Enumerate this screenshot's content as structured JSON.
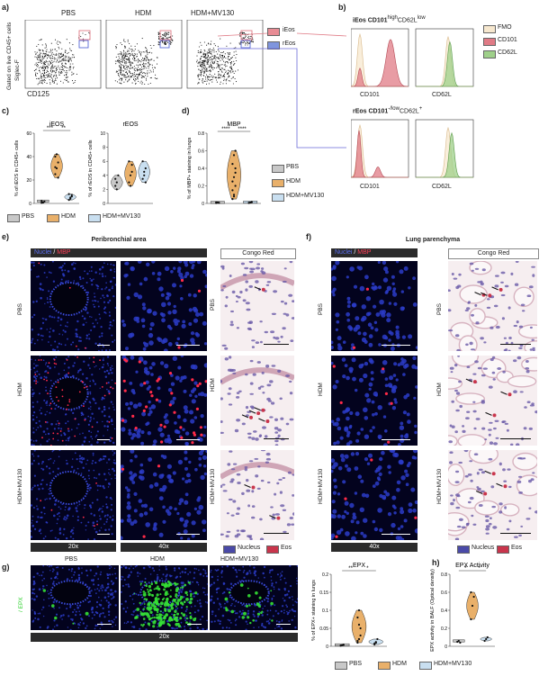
{
  "panels": {
    "a": "a)",
    "b": "b)",
    "c": "c)",
    "d": "d)",
    "e": "e)",
    "f": "f)",
    "g": "g)",
    "h": "h)"
  },
  "a": {
    "conditions": [
      "PBS",
      "HDM",
      "HDM+MV130"
    ],
    "y_axis_gate": "Gated on live CD45+ cells",
    "y_axis": "Siglec-F",
    "x_axis": "CD125",
    "gate_ieos": "iEos",
    "gate_reos": "rEos"
  },
  "b": {
    "ieos_title": "iEos CD101",
    "ieos_sup1": "high",
    "ieos_mid": "CD62L",
    "ieos_sup2": "low",
    "reos_title": "rEos CD101",
    "reos_sup1": "-/low",
    "reos_mid": "CD62L",
    "reos_sup2": "+",
    "x_cd101": "CD101",
    "x_cd62l": "CD62L",
    "legend": [
      {
        "label": "FMO",
        "color": "#f7e8cf"
      },
      {
        "label": "CD101",
        "color": "#e07b86"
      },
      {
        "label": "CD62L",
        "color": "#9fd08a"
      }
    ]
  },
  "colors": {
    "pbs": "#c8c8c8",
    "hdm": "#e9b06a",
    "mv130": "#c9dff0",
    "red": "#d9364c",
    "green": "#2fd12f"
  },
  "c": {
    "ieos_title": "iEOS",
    "reos_title": "rEOS",
    "ieos_ylabel": "% of iEOS in CD45+ cells",
    "reos_ylabel": "% of rEOS in CD45+ cells",
    "sig1": "***",
    "sig2": "**"
  },
  "d": {
    "title": "MBP",
    "ylabel": "% of MBP+ staining in lungs",
    "sig1": "****",
    "sig2": "****"
  },
  "legend_groups": [
    "PBS",
    "HDM",
    "HDM+MV130"
  ],
  "e": {
    "title": "Peribronchial area",
    "stain_label1": "Nuclei",
    "stain_sep": " / ",
    "stain_label2": "MBP",
    "congo_label": "Congo Red",
    "rows": [
      "PBS",
      "HDM",
      "HDM+MV130"
    ],
    "mag1": "20x",
    "mag2": "40x",
    "legend_nucleus": "Nucleus",
    "legend_eos": "Eos"
  },
  "f": {
    "title": "Lung parenchyma",
    "stain_label1": "Nuclei",
    "stain_sep": " / ",
    "stain_label2": "MBP",
    "congo_label": "Congo Red",
    "rows": [
      "PBS",
      "HDM",
      "HDM+MV130"
    ],
    "mag": "40x",
    "legend_nucleus": "Nucleus",
    "legend_eos": "Eos"
  },
  "g": {
    "cols": [
      "PBS",
      "HDM",
      "HDM+MV130"
    ],
    "side_label": "/ EPX",
    "mag": "20x",
    "chart_title": "EPX",
    "ylabel": "% of EPX+ staining in lungs",
    "sig1": "**",
    "sig2": "*"
  },
  "h": {
    "title": "EPX Activity",
    "ylabel": "EPX activity in BALF (Optical density)",
    "sig1": "*",
    "sig2": "*"
  },
  "chart_data": [
    {
      "type": "violin",
      "id": "c-ieos",
      "title": "iEOS",
      "ylabel": "% of iEOS in CD45+ cells",
      "ylim": [
        0,
        60
      ],
      "yticks": [
        0,
        20,
        40,
        60
      ],
      "series": [
        {
          "name": "PBS",
          "values": [
            0.5,
            1,
            1.5,
            2,
            0.8
          ]
        },
        {
          "name": "HDM",
          "values": [
            25,
            30,
            35,
            40,
            42,
            22,
            31
          ]
        },
        {
          "name": "HDM+MV130",
          "values": [
            3,
            5,
            6,
            8,
            4,
            7
          ]
        }
      ]
    },
    {
      "type": "violin",
      "id": "c-reos",
      "title": "rEOS",
      "ylabel": "% of rEOS in CD45+ cells",
      "ylim": [
        0,
        10
      ],
      "yticks": [
        0,
        2,
        4,
        6,
        8,
        10
      ],
      "series": [
        {
          "name": "PBS",
          "values": [
            2.5,
            3,
            4,
            3.5,
            2
          ]
        },
        {
          "name": "HDM",
          "values": [
            3,
            4,
            5.5,
            6,
            2.5,
            4.5
          ]
        },
        {
          "name": "HDM+MV130",
          "values": [
            3.5,
            4,
            5,
            6,
            4.5,
            3
          ]
        }
      ]
    },
    {
      "type": "violin",
      "id": "d-mbp",
      "title": "MBP",
      "ylabel": "% of MBP+ staining in lungs",
      "ylim": [
        0,
        0.8
      ],
      "yticks": [
        0,
        0.2,
        0.4,
        0.6,
        0.8
      ],
      "series": [
        {
          "name": "PBS",
          "values": [
            0.005,
            0.01,
            0.008,
            0.012
          ]
        },
        {
          "name": "HDM",
          "values": [
            0.05,
            0.1,
            0.2,
            0.25,
            0.3,
            0.35,
            0.45,
            0.55,
            0.6,
            0.15,
            0.08,
            0.4
          ]
        },
        {
          "name": "HDM+MV130",
          "values": [
            0.005,
            0.01,
            0.015,
            0.008
          ]
        }
      ]
    },
    {
      "type": "violin",
      "id": "g-epx",
      "title": "EPX",
      "ylabel": "% of EPX+ staining in lungs",
      "ylim": [
        0,
        0.2
      ],
      "yticks": [
        0,
        0.05,
        0.1,
        0.15,
        0.2
      ],
      "series": [
        {
          "name": "PBS",
          "values": [
            0.002,
            0.003,
            0.004,
            0.002
          ]
        },
        {
          "name": "HDM",
          "values": [
            0.01,
            0.02,
            0.05,
            0.08,
            0.1,
            0.03,
            0.015,
            0.06
          ]
        },
        {
          "name": "HDM+MV130",
          "values": [
            0.005,
            0.01,
            0.02,
            0.008,
            0.012
          ]
        }
      ]
    },
    {
      "type": "violin",
      "id": "h-epxact",
      "title": "EPX Activity",
      "ylabel": "EPX activity in BALF (Optical density)",
      "ylim": [
        0,
        0.8
      ],
      "yticks": [
        0,
        0.2,
        0.4,
        0.6,
        0.8
      ],
      "series": [
        {
          "name": "PBS",
          "values": [
            0.05,
            0.06,
            0.04
          ]
        },
        {
          "name": "HDM",
          "values": [
            0.3,
            0.45,
            0.55,
            0.6
          ]
        },
        {
          "name": "HDM+MV130",
          "values": [
            0.06,
            0.08,
            0.1
          ]
        }
      ]
    }
  ]
}
